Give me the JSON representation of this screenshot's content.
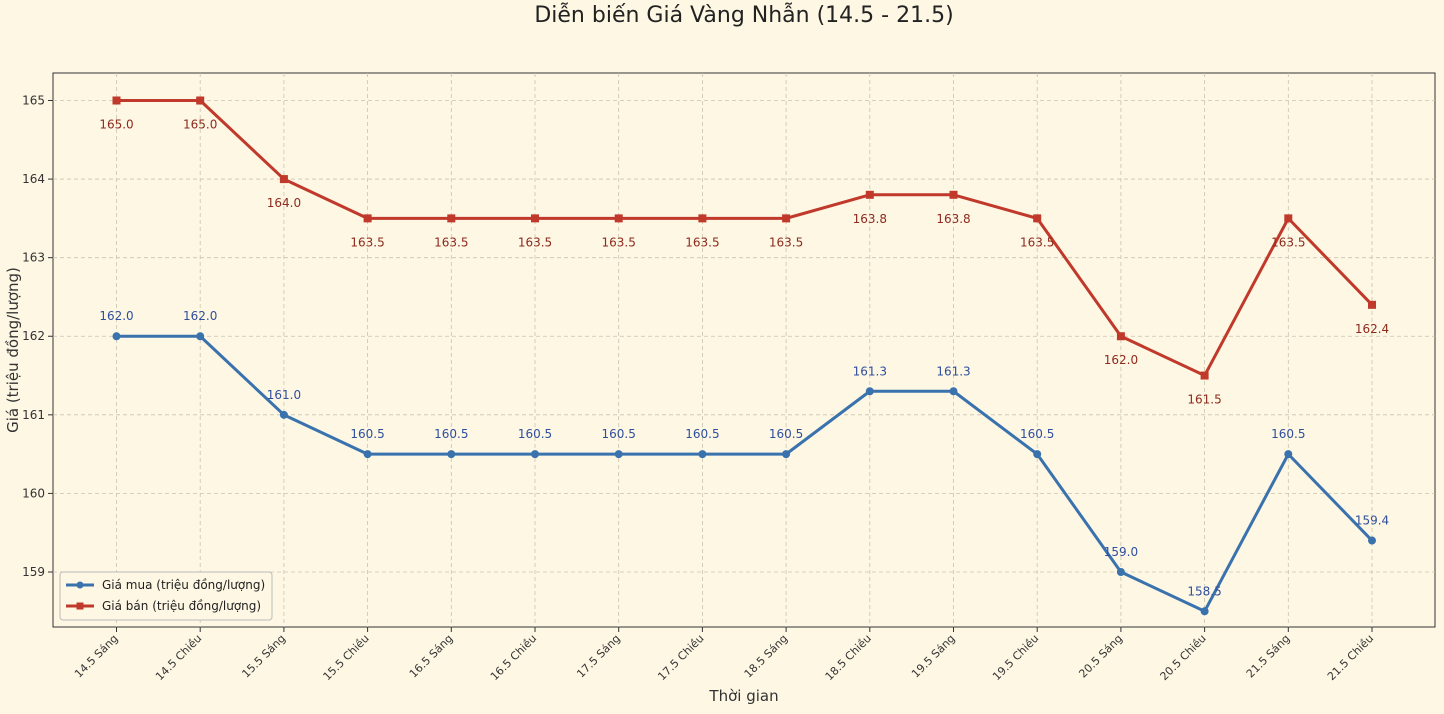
{
  "chart_data": {
    "type": "line",
    "title": "Diễn biến Giá Vàng Nhẫn (14.5 - 21.5)",
    "xlabel": "Thời gian",
    "ylabel": "Giá (triệu đồng/lượng)",
    "ylim": [
      158.3,
      165.35
    ],
    "yticks": [
      "159",
      "160",
      "161",
      "162",
      "163",
      "164",
      "165"
    ],
    "grid": true,
    "legend_position": "lower-left",
    "categories": [
      "14.5 Sáng",
      "14.5 Chiều",
      "15.5 Sáng",
      "15.5 Chiều",
      "16.5 Sáng",
      "16.5 Chiều",
      "17.5 Sáng",
      "17.5 Chiều",
      "18.5 Sáng",
      "18.5 Chiều",
      "19.5 Sáng",
      "19.5 Chiều",
      "20.5 Sáng",
      "20.5 Chiều",
      "21.5 Sáng",
      "21.5 Chiều"
    ],
    "series": [
      {
        "name": "Giá mua (triệu đồng/lượng)",
        "color": "#3a72ad",
        "label_color": "#2f4f9e",
        "marker": "circle",
        "label_position": "above",
        "values": [
          162.0,
          162.0,
          161.0,
          160.5,
          160.5,
          160.5,
          160.5,
          160.5,
          160.5,
          161.3,
          161.3,
          160.5,
          159.0,
          158.5,
          160.5,
          159.4
        ],
        "labels": [
          "162.0",
          "162.0",
          "161.0",
          "160.5",
          "160.5",
          "160.5",
          "160.5",
          "160.5",
          "160.5",
          "161.3",
          "161.3",
          "160.5",
          "159.0",
          "158.5",
          "160.5",
          "159.4"
        ]
      },
      {
        "name": "Giá bán (triệu đồng/lượng)",
        "color": "#c0392b",
        "label_color": "#8e2a1e",
        "marker": "square",
        "label_position": "below",
        "values": [
          165.0,
          165.0,
          164.0,
          163.5,
          163.5,
          163.5,
          163.5,
          163.5,
          163.5,
          163.8,
          163.8,
          163.5,
          162.0,
          161.5,
          163.5,
          162.4
        ],
        "labels": [
          "165.0",
          "165.0",
          "164.0",
          "163.5",
          "163.5",
          "163.5",
          "163.5",
          "163.5",
          "163.5",
          "163.8",
          "163.8",
          "163.5",
          "162.0",
          "161.5",
          "163.5",
          "162.4"
        ]
      }
    ]
  }
}
